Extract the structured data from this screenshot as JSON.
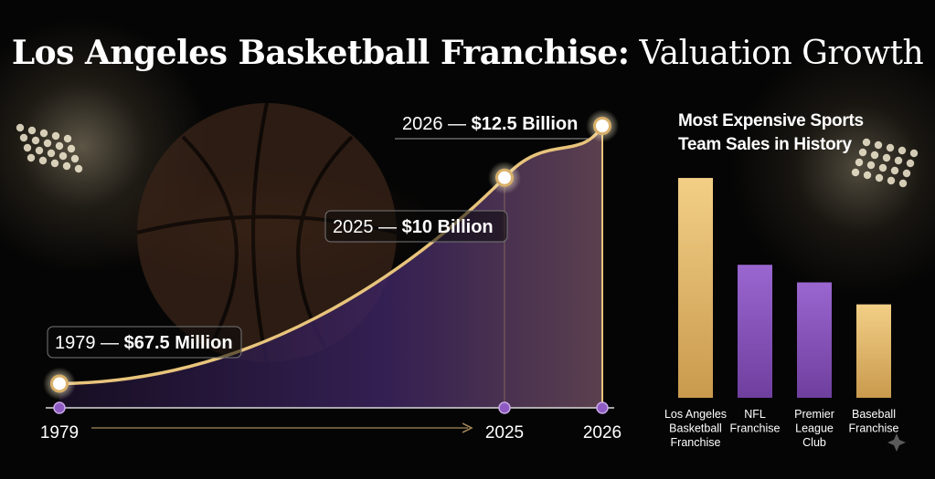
{
  "title": {
    "bold": "Los Angeles Basketball Franchise:",
    "light": "Valuation Growth"
  },
  "colors": {
    "gold": "#e8c47c",
    "purple": "#8d5bc1",
    "axis": "#d9d9d9"
  },
  "chart_data": [
    {
      "type": "line",
      "title": "",
      "xlabel": "",
      "ylabel": "",
      "x_ticks": [
        "1979",
        "2025",
        "2026"
      ],
      "series": [
        {
          "values": [
            {
              "x": "1979",
              "y": 0.0675,
              "label_year": "1979 — ",
              "label_value": "$67.5 Million"
            },
            {
              "x": "2025",
              "y": 10,
              "label_year": "2025 — ",
              "label_value": "$10 Billion"
            },
            {
              "x": "2026",
              "y": 12.5,
              "label_year": "2026 — ",
              "label_value": "$12.5 Billion"
            }
          ]
        }
      ]
    },
    {
      "type": "bar",
      "title_lines": [
        "Most Expensive Sports",
        "Team Sales in History"
      ],
      "categories": [
        [
          "Los Angeles",
          "Basketball",
          "Franchise"
        ],
        [
          "NFL",
          "Franchise"
        ],
        [
          "Premier",
          "League",
          "Club"
        ],
        [
          "Baseball",
          "Franchise"
        ]
      ],
      "values": [
        10,
        6.05,
        5.25,
        4.25
      ],
      "bar_colors": [
        "gold",
        "purple",
        "purple",
        "gold"
      ],
      "ylim": [
        0,
        10.5
      ],
      "grid": false,
      "legend": "none"
    }
  ]
}
